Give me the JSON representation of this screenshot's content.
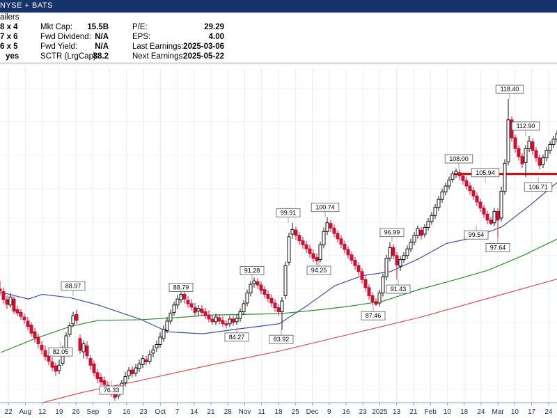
{
  "header": {
    "exchange": "NYSE + BATS",
    "group": "ailers"
  },
  "stats": {
    "left_col": [
      "8 x 4",
      "7 x 6",
      "6 x 5",
      "yes"
    ],
    "col2": [
      {
        "label": "Mkt Cap:",
        "value": "15.5B"
      },
      {
        "label": "Fwd Dividend:",
        "value": "N/A"
      },
      {
        "label": "Fwd Yield:",
        "value": "N/A"
      },
      {
        "label": "SCTR (LrgCap):",
        "value": "88.2"
      }
    ],
    "col3": [
      {
        "label": "P/E:",
        "value": "29.29"
      },
      {
        "label": "EPS:",
        "value": "4.00"
      },
      {
        "label": "Last Earnings:",
        "value": "2025-03-06"
      },
      {
        "label": "Next Earnings:",
        "value": "2025-05-22"
      }
    ]
  },
  "colors": {
    "up": "#111111",
    "down": "#cc1133",
    "ma_short": "#3a4fa8",
    "ma_mid": "#2e8b2e",
    "ma_long": "#e05050",
    "resistance": "#dd0000",
    "header_bg": "#16336b"
  },
  "chart_data": {
    "type": "candlestick",
    "y_range": [
      73,
      123
    ],
    "x_labels": [
      "22",
      "Aug",
      "12",
      "19",
      "26",
      "Sep",
      "9",
      "16",
      "23",
      "Oct",
      "7",
      "14",
      "21",
      "28",
      "Nov",
      "11",
      "18",
      "25",
      "Dec",
      "9",
      "16",
      "23",
      "2025",
      "13",
      "21",
      "Feb",
      "10",
      "18",
      "24",
      "Mar",
      "10",
      "17",
      "24"
    ],
    "price_labels": [
      "88.97",
      "82.05",
      "76.33",
      "88.79",
      "84.27",
      "91.28",
      "83.92",
      "99.91",
      "100.74",
      "94.25",
      "96.99",
      "91.43",
      "87.46",
      "108.00",
      "105.94",
      "99.54",
      "97.64",
      "118.40",
      "112.90",
      "106.71"
    ],
    "resistance_level": 107.2,
    "moving_averages": [
      {
        "key": "ma_short",
        "points": [
          [
            0,
            89.5
          ],
          [
            40,
            88.5
          ],
          [
            60,
            89.2
          ],
          [
            100,
            88.7
          ],
          [
            140,
            87.6
          ],
          [
            200,
            85.5
          ],
          [
            240,
            83.6
          ],
          [
            290,
            83.3
          ],
          [
            340,
            84.0
          ],
          [
            400,
            84.8
          ],
          [
            440,
            87.5
          ],
          [
            480,
            90.5
          ],
          [
            520,
            92.0
          ],
          [
            560,
            92.6
          ],
          [
            600,
            94.5
          ],
          [
            640,
            96.8
          ],
          [
            680,
            97.7
          ],
          [
            720,
            99.3
          ],
          [
            760,
            102.5
          ],
          [
            800,
            106.0
          ]
        ]
      },
      {
        "key": "ma_mid",
        "points": [
          [
            0,
            80.5
          ],
          [
            50,
            82.6
          ],
          [
            100,
            84.4
          ],
          [
            140,
            85.3
          ],
          [
            200,
            85.4
          ],
          [
            250,
            85.7
          ],
          [
            300,
            86.1
          ],
          [
            350,
            86.2
          ],
          [
            400,
            86.3
          ],
          [
            450,
            86.8
          ],
          [
            500,
            87.4
          ],
          [
            550,
            88.2
          ],
          [
            600,
            89.9
          ],
          [
            650,
            91.3
          ],
          [
            700,
            92.8
          ],
          [
            750,
            95.0
          ],
          [
            800,
            97.5
          ]
        ]
      },
      {
        "key": "ma_long",
        "points": [
          [
            60,
            73.0
          ],
          [
            120,
            74.6
          ],
          [
            200,
            76.3
          ],
          [
            300,
            78.6
          ],
          [
            400,
            80.7
          ],
          [
            500,
            83.2
          ],
          [
            600,
            85.7
          ],
          [
            700,
            88.6
          ],
          [
            800,
            91.5
          ]
        ]
      }
    ],
    "candles": [
      [
        -1,
        90.0,
        89.7,
        91.2,
        89.0
      ],
      [
        4,
        89.6,
        88.4,
        90.2,
        87.8
      ],
      [
        9,
        88.4,
        87.7,
        89.0,
        87.0
      ],
      [
        14,
        87.6,
        88.8,
        89.4,
        87.2
      ],
      [
        19,
        88.5,
        86.7,
        88.9,
        86.3
      ],
      [
        24,
        86.9,
        86.4,
        87.5,
        85.9
      ],
      [
        29,
        86.5,
        85.9,
        87.0,
        85.4
      ],
      [
        34,
        85.8,
        85.4,
        86.3,
        84.8
      ],
      [
        39,
        85.2,
        84.4,
        85.8,
        83.8
      ],
      [
        44,
        84.6,
        83.4,
        85.0,
        82.9
      ],
      [
        49,
        83.6,
        82.7,
        84.2,
        82.0
      ],
      [
        54,
        82.8,
        81.8,
        83.3,
        81.2
      ],
      [
        59,
        81.6,
        80.9,
        82.2,
        80.2
      ],
      [
        64,
        80.8,
        79.9,
        81.5,
        79.3
      ],
      [
        69,
        80.0,
        79.2,
        80.6,
        78.6
      ],
      [
        74,
        79.1,
        78.3,
        79.8,
        77.7
      ],
      [
        79,
        78.5,
        77.7,
        79.0,
        77.0
      ],
      [
        84,
        77.8,
        78.6,
        79.4,
        77.3
      ],
      [
        89,
        78.9,
        81.0,
        81.5,
        78.5
      ],
      [
        94,
        81.2,
        83.0,
        83.5,
        80.8
      ],
      [
        99,
        83.2,
        84.5,
        85.0,
        82.8
      ],
      [
        104,
        84.8,
        86.0,
        86.6,
        84.3
      ],
      [
        109,
        86.2,
        85.3,
        86.9,
        84.8
      ],
      [
        114,
        82.6,
        80.8,
        83.2,
        80.3
      ],
      [
        119,
        80.6,
        81.8,
        82.3,
        79.6
      ],
      [
        124,
        81.5,
        80.0,
        82.2,
        79.5
      ],
      [
        129,
        79.6,
        78.6,
        80.1,
        77.9
      ],
      [
        134,
        78.8,
        77.5,
        79.3,
        76.9
      ],
      [
        139,
        77.5,
        76.6,
        78.0,
        75.9
      ],
      [
        144,
        76.8,
        76.1,
        77.4,
        75.6
      ],
      [
        149,
        76.3,
        75.7,
        76.9,
        75.1
      ],
      [
        154,
        75.6,
        75.0,
        76.2,
        74.4
      ],
      [
        159,
        74.9,
        74.4,
        75.5,
        73.9
      ],
      [
        164,
        74.3,
        73.8,
        74.9,
        73.3
      ],
      [
        169,
        74.0,
        74.8,
        75.3,
        73.5
      ],
      [
        174,
        74.9,
        75.9,
        76.4,
        74.4
      ],
      [
        179,
        76.0,
        76.9,
        77.6,
        75.4
      ],
      [
        184,
        77.0,
        77.8,
        78.3,
        76.5
      ],
      [
        189,
        77.9,
        77.3,
        78.4,
        76.8
      ],
      [
        194,
        77.4,
        78.2,
        78.8,
        76.9
      ],
      [
        199,
        78.1,
        78.8,
        79.4,
        77.6
      ],
      [
        204,
        78.7,
        79.6,
        80.1,
        78.2
      ],
      [
        209,
        79.4,
        79.1,
        80.0,
        78.6
      ],
      [
        214,
        79.2,
        80.2,
        80.8,
        78.7
      ],
      [
        219,
        80.4,
        80.9,
        81.6,
        79.8
      ],
      [
        224,
        81.2,
        81.7,
        82.3,
        80.6
      ],
      [
        229,
        81.7,
        82.8,
        83.5,
        81.2
      ],
      [
        234,
        82.6,
        84.0,
        84.6,
        82.1
      ],
      [
        239,
        83.8,
        85.2,
        85.8,
        83.4
      ],
      [
        244,
        85.2,
        86.4,
        86.9,
        84.7
      ],
      [
        249,
        86.5,
        87.6,
        88.1,
        86.0
      ],
      [
        254,
        87.6,
        88.5,
        89.1,
        87.0
      ],
      [
        259,
        88.4,
        89.2,
        89.8,
        87.9
      ],
      [
        264,
        89.2,
        88.5,
        89.7,
        87.8
      ],
      [
        269,
        88.3,
        87.8,
        88.9,
        87.2
      ],
      [
        274,
        87.8,
        87.3,
        88.5,
        86.8
      ],
      [
        279,
        87.2,
        86.5,
        87.9,
        86.0
      ],
      [
        284,
        86.7,
        87.1,
        87.6,
        86.0
      ],
      [
        289,
        87.0,
        86.5,
        87.6,
        86.0
      ],
      [
        294,
        86.6,
        86.0,
        87.2,
        85.5
      ],
      [
        299,
        86.1,
        85.5,
        86.8,
        85.0
      ],
      [
        304,
        85.5,
        85.1,
        86.1,
        84.6
      ],
      [
        309,
        85.1,
        85.8,
        86.3,
        84.6
      ],
      [
        314,
        85.7,
        85.2,
        86.2,
        84.7
      ],
      [
        319,
        85.3,
        84.8,
        85.9,
        84.3
      ],
      [
        324,
        84.8,
        84.6,
        85.3,
        84.1
      ],
      [
        329,
        84.8,
        85.5,
        86.0,
        84.3
      ],
      [
        334,
        85.5,
        85.0,
        86.0,
        84.5
      ],
      [
        339,
        85.1,
        85.6,
        86.2,
        84.6
      ],
      [
        344,
        85.6,
        86.6,
        87.1,
        85.1
      ],
      [
        349,
        86.6,
        87.8,
        88.3,
        86.1
      ],
      [
        354,
        87.9,
        89.4,
        89.9,
        87.4
      ],
      [
        359,
        89.4,
        90.7,
        91.2,
        88.9
      ],
      [
        364,
        90.8,
        91.2,
        91.7,
        90.2
      ],
      [
        369,
        91.1,
        90.6,
        91.6,
        90.0
      ],
      [
        374,
        90.6,
        89.8,
        91.1,
        89.2
      ],
      [
        379,
        89.9,
        89.2,
        90.4,
        88.6
      ],
      [
        384,
        89.2,
        88.6,
        89.8,
        88.0
      ],
      [
        389,
        88.6,
        87.9,
        89.2,
        87.3
      ],
      [
        394,
        87.9,
        87.2,
        88.5,
        86.6
      ],
      [
        399,
        87.2,
        86.6,
        87.8,
        86.0
      ],
      [
        404,
        86.6,
        88.2,
        88.8,
        83.9
      ],
      [
        409,
        89.0,
        93.5,
        94.1,
        88.5
      ],
      [
        414,
        94.0,
        97.8,
        98.4,
        93.5
      ],
      [
        419,
        98.2,
        98.9,
        99.9,
        97.5
      ],
      [
        424,
        98.8,
        98.0,
        99.3,
        97.3
      ],
      [
        429,
        98.0,
        97.2,
        98.5,
        96.6
      ],
      [
        434,
        97.2,
        96.6,
        97.8,
        96.0
      ],
      [
        439,
        96.6,
        96.0,
        97.2,
        95.4
      ],
      [
        444,
        96.0,
        95.3,
        96.6,
        94.7
      ],
      [
        449,
        95.3,
        94.6,
        95.9,
        94.0
      ],
      [
        454,
        94.7,
        94.2,
        95.3,
        93.6
      ],
      [
        459,
        94.4,
        96.6,
        97.1,
        94.0
      ],
      [
        464,
        96.6,
        98.6,
        99.2,
        96.1
      ],
      [
        469,
        98.6,
        99.9,
        100.74,
        98.1
      ],
      [
        474,
        99.8,
        99.1,
        100.3,
        98.5
      ],
      [
        479,
        99.1,
        98.3,
        99.6,
        97.7
      ],
      [
        484,
        98.3,
        97.5,
        98.8,
        96.9
      ],
      [
        489,
        97.5,
        96.7,
        98.0,
        96.1
      ],
      [
        494,
        96.7,
        95.9,
        97.2,
        95.3
      ],
      [
        499,
        95.9,
        95.1,
        96.4,
        94.5
      ],
      [
        504,
        95.1,
        94.3,
        95.6,
        93.7
      ],
      [
        509,
        94.3,
        93.5,
        94.8,
        92.9
      ],
      [
        514,
        93.5,
        92.6,
        94.0,
        92.0
      ],
      [
        519,
        92.6,
        91.4,
        93.1,
        90.8
      ],
      [
        524,
        91.4,
        90.2,
        91.9,
        89.6
      ],
      [
        529,
        90.2,
        89.0,
        90.7,
        88.4
      ],
      [
        534,
        89.0,
        88.1,
        89.5,
        87.5
      ],
      [
        539,
        88.1,
        87.7,
        88.6,
        87.46
      ],
      [
        544,
        87.9,
        89.4,
        89.9,
        87.4
      ],
      [
        549,
        89.4,
        91.8,
        92.3,
        88.9
      ],
      [
        554,
        91.8,
        94.6,
        95.1,
        91.3
      ],
      [
        559,
        94.6,
        96.2,
        97.0,
        94.1
      ],
      [
        564,
        96.2,
        95.0,
        96.7,
        94.4
      ],
      [
        569,
        95.0,
        93.6,
        95.5,
        91.4
      ],
      [
        574,
        93.4,
        94.4,
        94.9,
        92.7
      ],
      [
        579,
        94.4,
        95.0,
        95.5,
        93.9
      ],
      [
        584,
        95.0,
        96.0,
        96.5,
        94.5
      ],
      [
        589,
        96.0,
        97.0,
        97.5,
        95.5
      ],
      [
        594,
        97.0,
        98.0,
        98.5,
        96.5
      ],
      [
        599,
        98.0,
        99.0,
        99.5,
        97.5
      ],
      [
        604,
        98.8,
        98.0,
        99.3,
        97.4
      ],
      [
        609,
        98.2,
        99.2,
        99.7,
        97.7
      ],
      [
        614,
        99.2,
        100.1,
        100.6,
        98.7
      ],
      [
        619,
        100.1,
        101.0,
        101.5,
        99.6
      ],
      [
        624,
        101.0,
        102.2,
        102.7,
        100.5
      ],
      [
        629,
        102.2,
        103.4,
        103.9,
        101.7
      ],
      [
        634,
        103.4,
        104.5,
        105.0,
        102.9
      ],
      [
        639,
        104.5,
        105.4,
        105.9,
        104.0
      ],
      [
        644,
        105.4,
        106.3,
        106.8,
        104.9
      ],
      [
        649,
        106.4,
        107.2,
        107.7,
        105.9
      ],
      [
        654,
        107.2,
        107.6,
        108.0,
        106.6
      ],
      [
        659,
        107.4,
        106.9,
        107.9,
        106.3
      ],
      [
        664,
        106.9,
        106.2,
        107.4,
        105.6
      ],
      [
        669,
        106.2,
        105.4,
        106.8,
        104.8
      ],
      [
        674,
        105.4,
        104.7,
        105.94,
        104.1
      ],
      [
        679,
        104.7,
        103.9,
        105.2,
        103.3
      ],
      [
        684,
        103.9,
        103.0,
        104.4,
        102.4
      ],
      [
        689,
        103.0,
        102.1,
        103.5,
        101.5
      ],
      [
        694,
        102.1,
        101.2,
        102.6,
        100.6
      ],
      [
        699,
        101.2,
        100.3,
        101.7,
        99.7
      ],
      [
        704,
        100.3,
        99.8,
        100.8,
        99.54
      ],
      [
        709,
        99.9,
        101.6,
        102.1,
        99.4
      ],
      [
        714,
        101.6,
        100.3,
        102.1,
        97.64
      ],
      [
        719,
        100.6,
        104.6,
        105.3,
        100.1
      ],
      [
        724,
        104.6,
        108.8,
        109.4,
        104.1
      ],
      [
        729,
        109.0,
        115.3,
        118.4,
        108.5
      ],
      [
        734,
        115.3,
        112.6,
        115.8,
        112.0
      ],
      [
        739,
        112.6,
        111.0,
        113.1,
        110.4
      ],
      [
        744,
        111.0,
        109.8,
        111.5,
        109.2
      ],
      [
        749,
        109.8,
        108.7,
        110.3,
        108.1
      ],
      [
        754,
        108.9,
        111.0,
        111.5,
        106.71
      ],
      [
        759,
        111.0,
        112.1,
        112.9,
        110.5
      ],
      [
        764,
        112.0,
        110.7,
        112.5,
        110.1
      ],
      [
        769,
        110.7,
        109.6,
        111.2,
        109.0
      ],
      [
        774,
        109.6,
        108.5,
        110.1,
        107.9
      ],
      [
        779,
        108.6,
        109.6,
        110.1,
        108.1
      ],
      [
        784,
        109.6,
        110.7,
        111.2,
        109.1
      ],
      [
        789,
        110.7,
        111.6,
        112.1,
        110.2
      ],
      [
        794,
        111.6,
        112.4,
        112.9,
        111.1
      ],
      [
        799,
        112.4,
        113.2,
        113.7,
        111.9
      ]
    ]
  }
}
